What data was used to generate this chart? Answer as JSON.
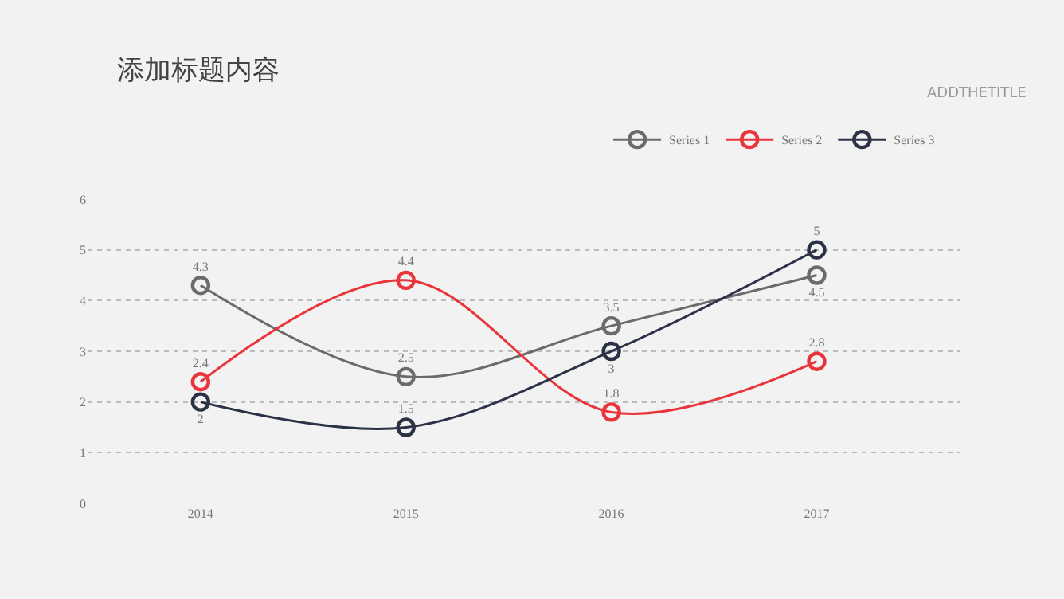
{
  "chart_data": {
    "type": "line",
    "title": "添加标题内容",
    "subtitle": "ADDTHETITLE",
    "categories": [
      "2014",
      "2015",
      "2016",
      "2017"
    ],
    "series": [
      {
        "name": "Series 1",
        "color": "#6b6b6b",
        "values": [
          4.3,
          2.5,
          3.5,
          4.5
        ]
      },
      {
        "name": "Series 2",
        "color": "#e8343a",
        "values": [
          2.4,
          4.4,
          1.8,
          2.8
        ]
      },
      {
        "name": "Series 3",
        "color": "#2b3245",
        "values": [
          2,
          1.5,
          3,
          5
        ]
      }
    ],
    "ylim": [
      0,
      6
    ],
    "yticks": [
      0,
      1,
      2,
      3,
      4,
      5,
      6
    ],
    "grid": "y",
    "legend": "top right",
    "marker": "circle",
    "line_style": "solid",
    "data_labels": true
  }
}
